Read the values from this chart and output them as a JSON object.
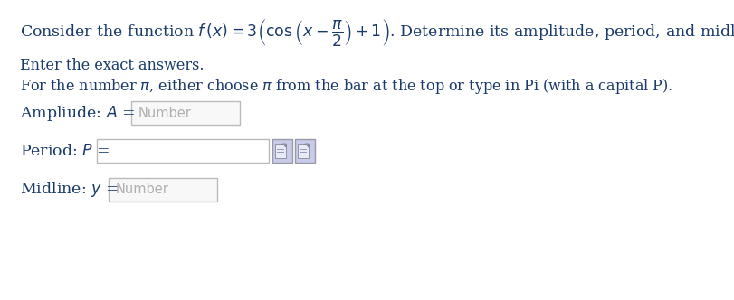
{
  "bg_color": "#ffffff",
  "text_color": "#1a3a6b",
  "instruction1": "Enter the exact answers.",
  "instruction2": "For the number $\\pi$, either choose $\\pi$ from the bar at the top or type in Pi (with a capital P).",
  "label_amplitude": "Ampliude: $\\mathit{A}$ =",
  "label_period": "Period: $\\mathit{P}$ =",
  "label_midline": "Midline: $\\mathit{y}$ =",
  "placeholder_amplitude": "Number",
  "placeholder_midline": "Number",
  "font_size_title": 12.5,
  "font_size_body": 11.5,
  "font_size_label": 12.5,
  "font_size_placeholder": 10.5
}
